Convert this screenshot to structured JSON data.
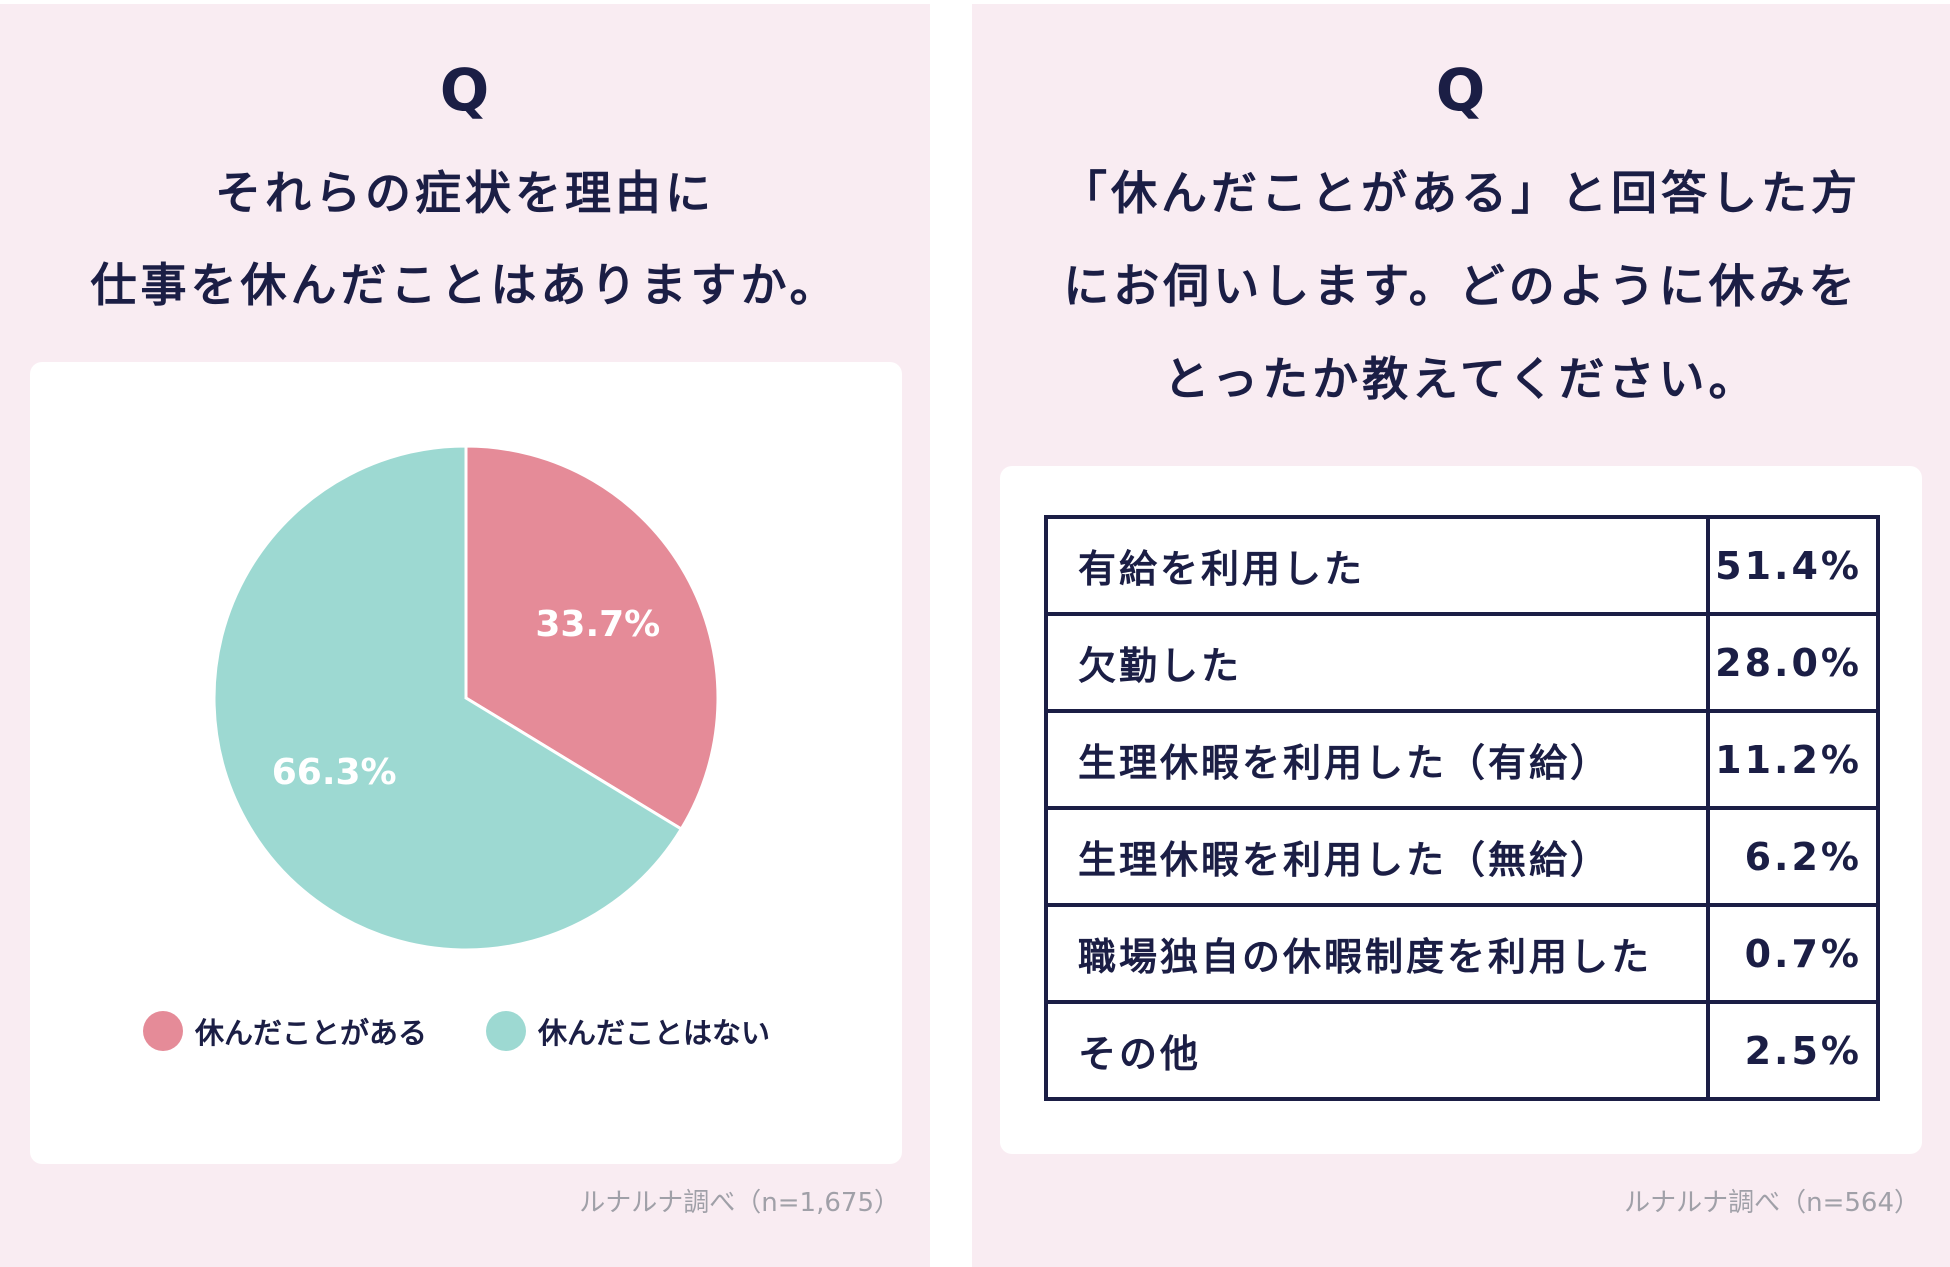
{
  "left": {
    "q_mark": "Q",
    "title_lines": [
      "それらの症状を理由に",
      "仕事を休んだことはありますか。"
    ],
    "source": "ルナルナ調べ（n=1,675）"
  },
  "right": {
    "q_mark": "Q",
    "title_lines": [
      "「休んだことがある」と回答した方",
      "にお伺いします。どのように休みを",
      "とったか教えてください。"
    ],
    "source": "ルナルナ調べ（n=564）"
  },
  "chart_data": [
    {
      "type": "pie",
      "title": "",
      "slices": [
        {
          "label": "休んだことがある",
          "value": 33.7,
          "display": "33.7%",
          "color": "#e58b98"
        },
        {
          "label": "休んだことはない",
          "value": 66.3,
          "display": "66.3%",
          "color": "#9dd9d2"
        }
      ],
      "legend": {
        "placement": "bottom"
      }
    },
    {
      "type": "table",
      "title": "",
      "rows": [
        {
          "label": "有給を利用した",
          "value": 51.4,
          "display": "51.4%"
        },
        {
          "label": "欠勤した",
          "value": 28.0,
          "display": "28.0%"
        },
        {
          "label": "生理休暇を利用した（有給）",
          "value": 11.2,
          "display": "11.2%"
        },
        {
          "label": "生理休暇を利用した（無給）",
          "value": 6.2,
          "display": "6.2%"
        },
        {
          "label": "職場独自の休暇制度を利用した",
          "value": 0.7,
          "display": "0.7%"
        },
        {
          "label": "その他",
          "value": 2.5,
          "display": "2.5%"
        }
      ]
    }
  ]
}
